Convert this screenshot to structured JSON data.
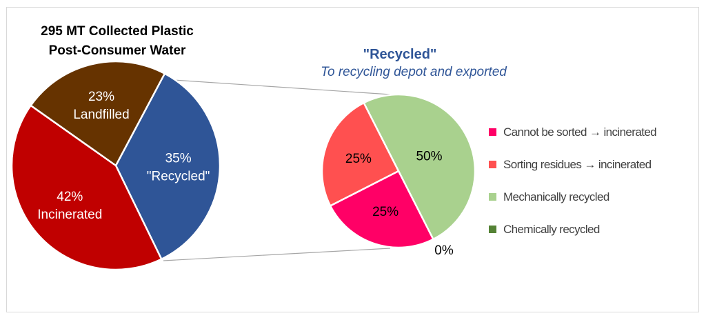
{
  "chart_data": [
    {
      "type": "pie",
      "title": "295 MT Collected Plastic Post-Consumer Water",
      "title_lines": [
        "295 MT Collected Plastic",
        "Post-Consumer Water"
      ],
      "slices": [
        {
          "label": "\"Recycled\"",
          "value": 35,
          "data_label": "35%",
          "color": "#2F5597"
        },
        {
          "label": "Incinerated",
          "value": 42,
          "data_label": "42%",
          "color": "#C00000"
        },
        {
          "label": "Landfilled",
          "value": 23,
          "data_label": "23%",
          "color": "#663300"
        }
      ]
    },
    {
      "type": "pie",
      "title": "\"Recycled\"",
      "subtitle": "To recycling depot and exported",
      "legend_position": "right",
      "slices": [
        {
          "label": "Mechanically recycled",
          "value": 50,
          "data_label": "50%",
          "color": "#A9D18E"
        },
        {
          "label": "Chemically recycled",
          "value": 0,
          "data_label": "0%",
          "color": "#548235"
        },
        {
          "label": "Cannot be sorted → incinerated",
          "value": 25,
          "data_label": "25%",
          "color": "#FF0066"
        },
        {
          "label": "Sorting residues →  incinerated",
          "value": 25,
          "data_label": "25%",
          "color": "#FF5050"
        }
      ],
      "legend_order": [
        2,
        3,
        0,
        1
      ]
    }
  ]
}
